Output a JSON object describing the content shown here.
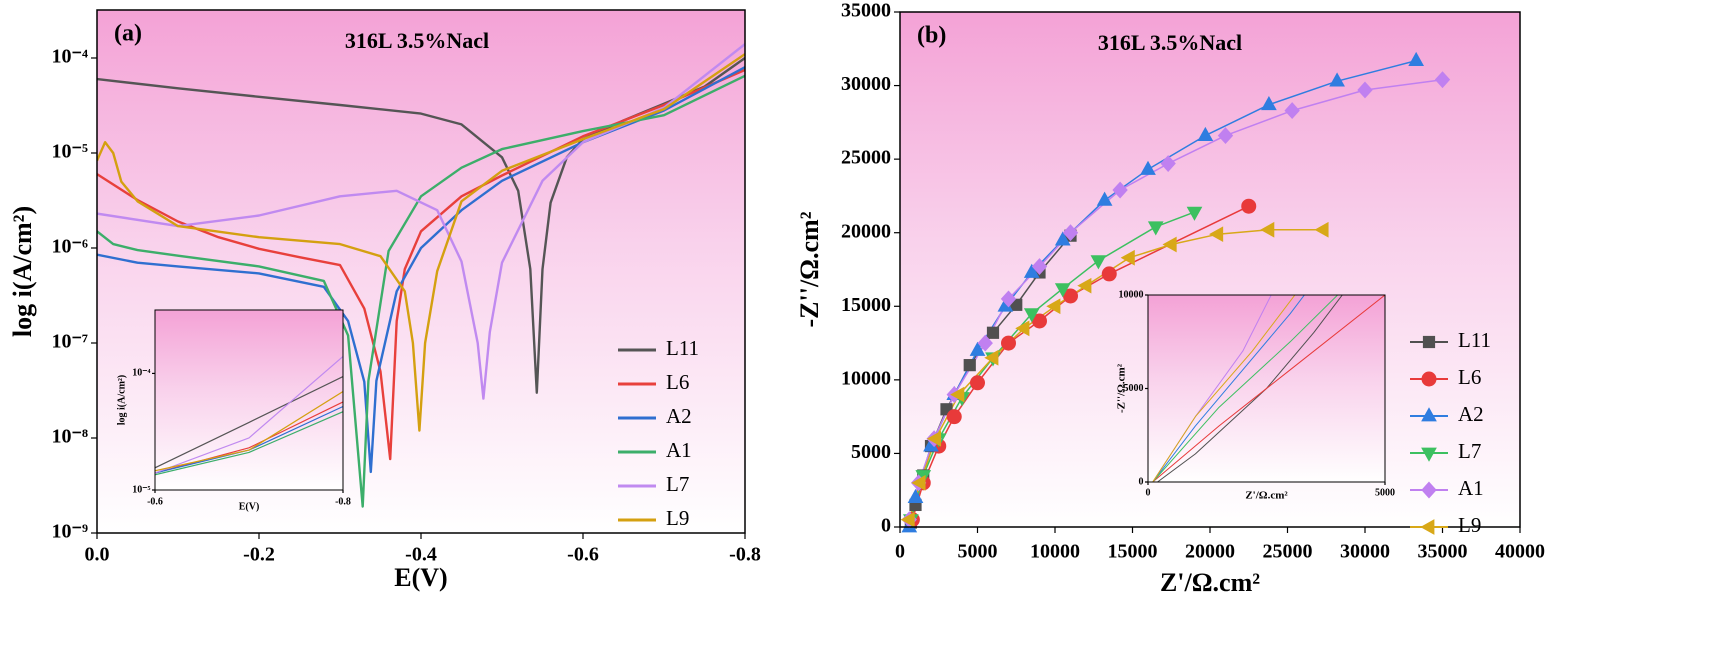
{
  "chart_data": [
    {
      "type": "line",
      "panel_label": "(a)",
      "title": "316L 3.5%Nacl",
      "x_label": "E(V)",
      "y_label": "log i(A/cm²)",
      "ylog": true,
      "legend": "lower right",
      "xlim": [
        0,
        -0.8
      ],
      "xticks": [
        {
          "value": 0,
          "label": "0.0"
        },
        -0.2,
        -0.4,
        -0.6,
        -0.8
      ],
      "ylim": [
        1e-09,
        0.00032
      ],
      "yticks": [
        {
          "value": 1e-09,
          "label": "10⁻⁹"
        },
        {
          "value": 1e-08,
          "label": "10⁻⁸"
        },
        {
          "value": 1e-07,
          "label": "10⁻⁷"
        },
        {
          "value": 1e-06,
          "label": "10⁻⁶"
        },
        {
          "value": 1e-05,
          "label": "10⁻⁵"
        },
        {
          "value": 0.0001,
          "label": "10⁻⁴"
        }
      ],
      "series": [
        {
          "name": "L11",
          "color": "#555555",
          "x": [
            0,
            -0.1,
            -0.2,
            -0.3,
            -0.4,
            -0.45,
            -0.5,
            -0.52,
            -0.535,
            -0.543,
            -0.55,
            -0.56,
            -0.58,
            -0.6,
            -0.65,
            -0.7,
            -0.75,
            -0.8
          ],
          "values": [
            6e-05,
            4.8e-05,
            3.9e-05,
            3.2e-05,
            2.6e-05,
            2e-05,
            9e-06,
            4e-06,
            6e-07,
            3e-08,
            6e-07,
            3e-06,
            9e-06,
            1.4e-05,
            2.2e-05,
            3.3e-05,
            5e-05,
            0.0001
          ]
        },
        {
          "name": "L6",
          "color": "#e8403c",
          "x": [
            0,
            -0.05,
            -0.1,
            -0.15,
            -0.2,
            -0.25,
            -0.3,
            -0.33,
            -0.35,
            -0.362,
            -0.37,
            -0.38,
            -0.4,
            -0.45,
            -0.5,
            -0.6,
            -0.7,
            -0.8
          ],
          "values": [
            6e-06,
            3.2e-06,
            1.9e-06,
            1.3e-06,
            9.8e-07,
            8e-07,
            6.6e-07,
            2.3e-07,
            5e-08,
            6e-09,
            1.7e-07,
            6e-07,
            1.5e-06,
            3.5e-06,
            5.8e-06,
            1.5e-05,
            3.2e-05,
            7.5e-05
          ]
        },
        {
          "name": "A2",
          "color": "#2f6fd0",
          "x": [
            0,
            -0.05,
            -0.1,
            -0.2,
            -0.28,
            -0.31,
            -0.33,
            -0.338,
            -0.345,
            -0.37,
            -0.4,
            -0.45,
            -0.5,
            -0.6,
            -0.7,
            -0.8
          ],
          "values": [
            8.5e-07,
            7e-07,
            6.4e-07,
            5.4e-07,
            3.9e-07,
            1.7e-07,
            3.9e-08,
            4.4e-09,
            4e-08,
            3.5e-07,
            1e-06,
            2.5e-06,
            5.1e-06,
            1.3e-05,
            2.8e-05,
            8e-05
          ]
        },
        {
          "name": "A1",
          "color": "#3cae6a",
          "x": [
            0,
            -0.02,
            -0.05,
            -0.1,
            -0.2,
            -0.28,
            -0.31,
            -0.328,
            -0.335,
            -0.36,
            -0.4,
            -0.45,
            -0.5,
            -0.6,
            -0.7,
            -0.8
          ],
          "values": [
            1.5e-06,
            1.1e-06,
            9.5e-07,
            8.3e-07,
            6.4e-07,
            4.5e-07,
            1.2e-07,
            1.9e-09,
            4e-08,
            9.3e-07,
            3.5e-06,
            7e-06,
            1.1e-05,
            1.7e-05,
            2.5e-05,
            6.5e-05
          ]
        },
        {
          "name": "L7",
          "color": "#c08af0",
          "x": [
            0,
            -0.1,
            -0.2,
            -0.3,
            -0.37,
            -0.42,
            -0.45,
            -0.47,
            -0.477,
            -0.485,
            -0.5,
            -0.55,
            -0.6,
            -0.7,
            -0.8
          ],
          "values": [
            2.3e-06,
            1.7e-06,
            2.2e-06,
            3.5e-06,
            4e-06,
            2.5e-06,
            7.2e-07,
            1e-07,
            2.6e-08,
            1.3e-07,
            7e-07,
            5.1e-06,
            1.3e-05,
            3e-05,
            0.00014
          ]
        },
        {
          "name": "L9",
          "color": "#d4a010",
          "x": [
            0,
            -0.01,
            -0.02,
            -0.03,
            -0.05,
            -0.1,
            -0.2,
            -0.3,
            -0.35,
            -0.38,
            -0.39,
            -0.398,
            -0.405,
            -0.42,
            -0.45,
            -0.5,
            -0.6,
            -0.7,
            -0.8
          ],
          "values": [
            8.3e-06,
            1.3e-05,
            1e-05,
            5e-06,
            3.1e-06,
            1.7e-06,
            1.3e-06,
            1.1e-06,
            8.2e-07,
            3.5e-07,
            1e-07,
            1.2e-08,
            1e-07,
            5.7e-07,
            3.1e-06,
            6.5e-06,
            1.4e-05,
            2.9e-05,
            0.00011
          ]
        }
      ]
    },
    {
      "type": "line",
      "x_label": "E(V)",
      "y_label": "log i(A/cm²)",
      "ylog": true,
      "xlim": [
        -0.6,
        -0.8
      ],
      "xticks": [
        -0.6,
        -0.8
      ],
      "ylim": [
        1e-05,
        0.00035
      ],
      "yticks": [
        {
          "value": 1e-05,
          "label": "10⁻⁵"
        },
        {
          "value": 0.0001,
          "label": "10⁻⁴"
        }
      ],
      "series": [
        {
          "color": "#555555",
          "x": [
            -0.6,
            -0.7,
            -0.8
          ],
          "values": [
            1.55e-05,
            3.8e-05,
            9.4e-05
          ]
        },
        {
          "color": "#e8403c",
          "x": [
            -0.6,
            -0.7,
            -0.8
          ],
          "values": [
            1.4e-05,
            2.3e-05,
            5.7e-05
          ]
        },
        {
          "color": "#2f6fd0",
          "x": [
            -0.6,
            -0.7,
            -0.8
          ],
          "values": [
            1.4e-05,
            2.2e-05,
            5.2e-05
          ]
        },
        {
          "color": "#3cae6a",
          "x": [
            -0.6,
            -0.7,
            -0.8
          ],
          "values": [
            1.35e-05,
            2.1e-05,
            4.7e-05
          ]
        },
        {
          "color": "#c08af0",
          "x": [
            -0.6,
            -0.7,
            -0.8
          ],
          "values": [
            1.4e-05,
            2.8e-05,
            0.00014
          ]
        },
        {
          "color": "#d4a010",
          "x": [
            -0.6,
            -0.7,
            -0.8
          ],
          "values": [
            1.46e-05,
            2.2e-05,
            7e-05
          ]
        }
      ]
    },
    {
      "type": "line",
      "panel_label": "(b)",
      "title": "316L 3.5%Nacl",
      "x_label": "Z'/Ω.cm²",
      "y_label": "-Z''/Ω.cm²",
      "legend": "lower right",
      "xlim": [
        0,
        40000
      ],
      "xticks": [
        0,
        5000,
        10000,
        15000,
        20000,
        25000,
        30000,
        35000,
        40000
      ],
      "ylim": [
        0,
        35000
      ],
      "yticks": [
        0,
        5000,
        10000,
        15000,
        20000,
        25000,
        30000,
        35000
      ],
      "series": [
        {
          "name": "L11",
          "color": "#505050",
          "marker": "square",
          "x": [
            700,
            1000,
            1500,
            2000,
            3000,
            4500,
            6000,
            7500,
            9000,
            11000
          ],
          "values": [
            300,
            1500,
            3500,
            5500,
            8000,
            11000,
            13200,
            15100,
            17300,
            19800
          ]
        },
        {
          "name": "L6",
          "color": "#e83a3a",
          "marker": "circle",
          "x": [
            800,
            1500,
            2500,
            3500,
            5000,
            7000,
            9000,
            11000,
            13500,
            22500
          ],
          "values": [
            500,
            3000,
            5500,
            7500,
            9800,
            12500,
            14000,
            15700,
            17200,
            21800
          ]
        },
        {
          "name": "A2",
          "color": "#2f7de0",
          "marker": "triangle-up",
          "x": [
            600,
            1000,
            2000,
            3500,
            5000,
            6800,
            8500,
            10500,
            13200,
            16000,
            19700,
            23800,
            28200,
            33300
          ],
          "values": [
            0,
            2000,
            5500,
            9000,
            12000,
            15000,
            17300,
            19500,
            22200,
            24300,
            26600,
            28700,
            30300,
            31700
          ]
        },
        {
          "name": "L7",
          "color": "#3cc060",
          "marker": "triangle-down",
          "x": [
            700,
            1500,
            2500,
            4000,
            6000,
            8500,
            10500,
            12800,
            16500,
            19000
          ],
          "values": [
            500,
            3500,
            6000,
            8800,
            11500,
            14500,
            16200,
            18100,
            20400,
            21400
          ]
        },
        {
          "name": "A1",
          "color": "#c080f0",
          "marker": "diamond",
          "x": [
            600,
            1200,
            2200,
            3500,
            5500,
            7000,
            9000,
            11000,
            14200,
            17300,
            21000,
            25300,
            30000,
            35000
          ],
          "values": [
            500,
            3000,
            6000,
            9000,
            12500,
            15500,
            17700,
            20000,
            22900,
            24700,
            26600,
            28300,
            29700,
            30400
          ]
        },
        {
          "name": "L9",
          "color": "#d8a818",
          "marker": "triangle-left",
          "x": [
            600,
            1300,
            2300,
            3800,
            6000,
            8000,
            10000,
            12000,
            14800,
            17500,
            20500,
            23800,
            27300
          ],
          "values": [
            500,
            3000,
            6000,
            9000,
            11500,
            13500,
            15000,
            16400,
            18300,
            19200,
            19900,
            20200,
            20200
          ]
        }
      ]
    },
    {
      "type": "line",
      "x_label": "Z'/Ω.cm²",
      "y_label": "-Z''/Ω.cm²",
      "xlim": [
        0,
        5000
      ],
      "xticks": [
        0,
        5000
      ],
      "ylim": [
        0,
        10000
      ],
      "yticks": [
        0,
        5000,
        10000
      ],
      "series": [
        {
          "color": "#505050",
          "x": [
            200,
            1000,
            2500,
            3500,
            4100
          ],
          "values": [
            0,
            1500,
            5000,
            8000,
            10000
          ]
        },
        {
          "color": "#e83a3a",
          "x": [
            100,
            1500,
            3000,
            5000
          ],
          "values": [
            0,
            3000,
            6000,
            10000
          ]
        },
        {
          "color": "#2f7de0",
          "x": [
            100,
            1000,
            2000,
            3000,
            3300
          ],
          "values": [
            0,
            3000,
            6000,
            9000,
            10000
          ]
        },
        {
          "color": "#3cc060",
          "x": [
            100,
            1500,
            3000,
            4000
          ],
          "values": [
            0,
            4000,
            7500,
            10000
          ]
        },
        {
          "color": "#c080f0",
          "x": [
            100,
            1000,
            2000,
            2600
          ],
          "values": [
            0,
            3500,
            7000,
            10000
          ]
        },
        {
          "color": "#d8a818",
          "x": [
            100,
            1000,
            2200,
            3100
          ],
          "values": [
            0,
            3500,
            7000,
            10000
          ]
        }
      ]
    }
  ]
}
